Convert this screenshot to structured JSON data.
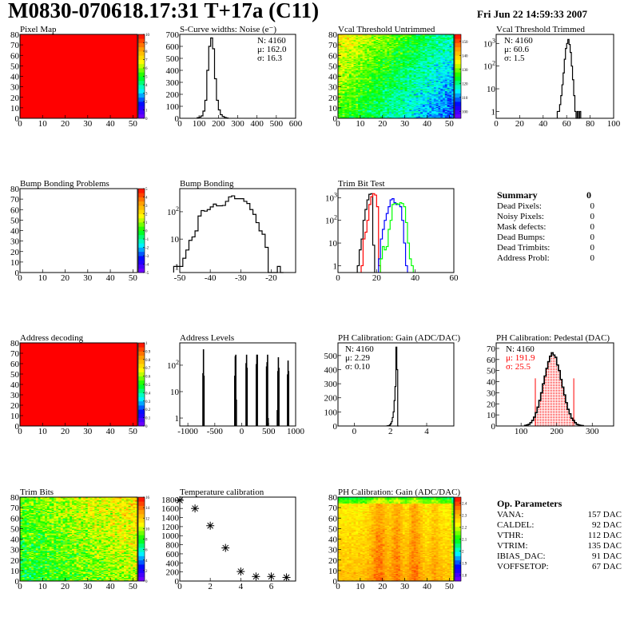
{
  "header": {
    "title": "M0830-070618.17:31 T+17a (C11)",
    "date": "Fri Jun 22 14:59:33 2007"
  },
  "summary": {
    "title": "Summary",
    "total": "0",
    "items": [
      {
        "label": "Dead Pixels:",
        "value": "0"
      },
      {
        "label": "Noisy Pixels:",
        "value": "0"
      },
      {
        "label": "Mask defects:",
        "value": "0"
      },
      {
        "label": "Dead Bumps:",
        "value": "0"
      },
      {
        "label": "Dead Trimbits:",
        "value": "0"
      },
      {
        "label": "Address Probl:",
        "value": "0"
      }
    ]
  },
  "op_parameters": {
    "title": "Op. Parameters",
    "items": [
      {
        "label": "VANA:",
        "value": "157 DAC"
      },
      {
        "label": "CALDEL:",
        "value": "92 DAC"
      },
      {
        "label": "VTHR:",
        "value": "112 DAC"
      },
      {
        "label": "VTRIM:",
        "value": "135 DAC"
      },
      {
        "label": "IBIAS_DAC:",
        "value": "91 DAC"
      },
      {
        "label": "VOFFSETOP:",
        "value": "67 DAC"
      }
    ]
  },
  "colors": {
    "palette": [
      "#7f00ff",
      "#0000ff",
      "#00ffff",
      "#00ff00",
      "#ffff00",
      "#ff9900",
      "#ff0000"
    ],
    "red": "#ff0000",
    "blue": "#0000ff",
    "green": "#00ff00",
    "black": "#000000"
  },
  "chart_data": [
    {
      "type": "heatmap",
      "title": "Pixel Map",
      "xlim": [
        0,
        52
      ],
      "ylim": [
        0,
        80
      ],
      "xticks": [
        0,
        10,
        20,
        30,
        40,
        50
      ],
      "yticks": [
        0,
        10,
        20,
        30,
        40,
        50,
        60,
        70,
        80
      ],
      "zlim": [
        0,
        10
      ],
      "zticks": [
        "0",
        "1",
        "2",
        "3",
        "4",
        "5",
        "6",
        "7",
        "8",
        "9",
        "10"
      ],
      "uniform_value": 10
    },
    {
      "type": "hist",
      "title": "S-Curve widths: Noise (e⁻)",
      "xlim": [
        0,
        600
      ],
      "ylim": [
        0,
        700
      ],
      "xticks": [
        0,
        100,
        200,
        300,
        400,
        500,
        600
      ],
      "yticks": [
        0,
        100,
        200,
        300,
        400,
        500,
        600,
        700
      ],
      "bin_start": 90,
      "bin_width": 10,
      "counts": [
        5,
        10,
        20,
        60,
        150,
        400,
        600,
        670,
        580,
        330,
        150,
        70,
        30,
        15,
        8,
        3
      ],
      "stats": [
        "N: 4160",
        "μ: 162.0",
        "σ: 16.3"
      ]
    },
    {
      "type": "heatmap",
      "title": "Vcal Threshold Untrimmed",
      "xlim": [
        0,
        52
      ],
      "ylim": [
        0,
        80
      ],
      "xticks": [
        0,
        10,
        20,
        30,
        40,
        50
      ],
      "yticks": [
        0,
        10,
        20,
        30,
        40,
        50,
        60,
        70,
        80
      ],
      "zlim": [
        95,
        155
      ],
      "zticks": [
        "100",
        "110",
        "120",
        "130",
        "140",
        "150"
      ]
    },
    {
      "type": "hist",
      "title": "Vcal Threshold Trimmed",
      "xlim": [
        0,
        100
      ],
      "ylim": [
        0.5,
        2500
      ],
      "logy": true,
      "xticks": [
        0,
        20,
        40,
        60,
        80,
        100
      ],
      "yticks": [
        1,
        10,
        100,
        1000
      ],
      "ytick_labels": [
        "1",
        "10",
        "10^2",
        "10^3"
      ],
      "bin_start": 52,
      "bin_width": 1,
      "counts": [
        1,
        1,
        2,
        5,
        15,
        50,
        200,
        600,
        1000,
        1500,
        900,
        400,
        100,
        25,
        5,
        1,
        0,
        1,
        0,
        1
      ],
      "stats": [
        "N: 4160",
        "μ: 60.6",
        "σ:  1.5"
      ]
    },
    {
      "type": "heatmap",
      "title": "Bump Bonding Problems",
      "xlim": [
        0,
        52
      ],
      "ylim": [
        0,
        80
      ],
      "xticks": [
        0,
        10,
        20,
        30,
        40,
        50
      ],
      "yticks": [
        0,
        10,
        20,
        30,
        40,
        50,
        60,
        70,
        80
      ],
      "zlim": [
        -5,
        5
      ],
      "zticks": [
        "-5",
        "-4",
        "-3",
        "-2",
        "-1",
        "0",
        "1",
        "2",
        "3",
        "4",
        "5"
      ],
      "empty": true
    },
    {
      "type": "hist",
      "title": "Bump Bonding",
      "xlim": [
        -50,
        -12
      ],
      "ylim": [
        0.6,
        700
      ],
      "logy": true,
      "xticks": [
        -50,
        -40,
        -30,
        -20
      ],
      "yticks": [
        1,
        10,
        100
      ],
      "ytick_labels": [
        "1",
        "10",
        "10^2"
      ],
      "bin_start": -52,
      "bin_width": 1,
      "counts": [
        1,
        1,
        1,
        2,
        4,
        9,
        12,
        20,
        70,
        110,
        105,
        120,
        150,
        190,
        165,
        165,
        170,
        240,
        350,
        380,
        300,
        300,
        300,
        240,
        200,
        120,
        80,
        40,
        20,
        15,
        5,
        0,
        0,
        0,
        1,
        0
      ],
      "stats": []
    },
    {
      "type": "hist",
      "title": "Trim Bit Test",
      "xlim": [
        0,
        60
      ],
      "ylim": [
        0.5,
        2500
      ],
      "logy": true,
      "xticks": [
        0,
        20,
        40,
        60
      ],
      "yticks": [
        1,
        10,
        100,
        1000
      ],
      "ytick_labels": [
        "1",
        "10",
        "10^2",
        "10^3"
      ],
      "series": [
        {
          "color": "#000000",
          "bin_start": 10,
          "bin_width": 1,
          "counts": [
            1,
            5,
            15,
            100,
            300,
            800,
            1400,
            1500,
            8
          ]
        },
        {
          "color": "#ff0000",
          "bin_start": 12,
          "bin_width": 1,
          "counts": [
            1,
            15,
            30,
            100,
            500,
            1100,
            1500,
            1300,
            400,
            1
          ]
        },
        {
          "color": "#0000ff",
          "bin_start": 21,
          "bin_width": 1,
          "counts": [
            2,
            15,
            40,
            100,
            200,
            400,
            800,
            900,
            600,
            500,
            500,
            400,
            100,
            10,
            1
          ]
        },
        {
          "color": "#00ff00",
          "bin_start": 22,
          "bin_width": 1,
          "counts": [
            2,
            7,
            5,
            7,
            40,
            100,
            500,
            550,
            550,
            500,
            600,
            550,
            400,
            80,
            10,
            2,
            1
          ]
        }
      ],
      "stats": []
    },
    {
      "type": "heatmap",
      "title": "Address decoding",
      "xlim": [
        0,
        52
      ],
      "ylim": [
        0,
        80
      ],
      "xticks": [
        0,
        10,
        20,
        30,
        40,
        50
      ],
      "yticks": [
        0,
        10,
        20,
        30,
        40,
        50,
        60,
        70,
        80
      ],
      "zlim": [
        0,
        1
      ],
      "zticks": [
        "0",
        "0.1",
        "0.2",
        "0.3",
        "0.4",
        "0.5",
        "0.6",
        "0.7",
        "0.8",
        "0.9",
        "1"
      ],
      "uniform_value": 1
    },
    {
      "type": "spikes",
      "title": "Address Levels",
      "xlim": [
        -1150,
        1000
      ],
      "ylim": [
        0.5,
        700
      ],
      "logy": true,
      "xticks": [
        -1000,
        -500,
        0,
        500,
        1000
      ],
      "yticks": [
        1,
        10,
        100
      ],
      "ytick_labels": [
        "1",
        "10",
        "10^2"
      ],
      "peaks": [
        [
          -720,
          50
        ],
        [
          -710,
          400
        ],
        [
          -700,
          40
        ],
        [
          -130,
          40
        ],
        [
          -120,
          220
        ],
        [
          -110,
          250
        ],
        [
          -100,
          5
        ],
        [
          80,
          120
        ],
        [
          90,
          250
        ],
        [
          100,
          80
        ],
        [
          270,
          110
        ],
        [
          280,
          250
        ],
        [
          290,
          250
        ],
        [
          460,
          90
        ],
        [
          470,
          130
        ],
        [
          480,
          250
        ],
        [
          490,
          1
        ],
        [
          660,
          2
        ],
        [
          670,
          60
        ],
        [
          680,
          200
        ],
        [
          690,
          80
        ],
        [
          850,
          45
        ],
        [
          860,
          150
        ],
        [
          870,
          60
        ]
      ],
      "stats": []
    },
    {
      "type": "hist",
      "title": "PH Calibration: Gain (ADC/DAC)",
      "xlim": [
        -0.9,
        5.5
      ],
      "ylim": [
        0,
        590
      ],
      "xticks": [
        0,
        2,
        4
      ],
      "yticks": [
        0,
        100,
        200,
        300,
        400,
        500
      ],
      "bin_start": 1.8,
      "bin_width": 0.05,
      "counts": [
        1,
        2,
        4,
        8,
        15,
        30,
        60,
        100,
        180,
        280,
        560,
        400,
        0
      ],
      "stats": [
        "N: 4160",
        "μ: 2.29",
        "σ: 0.10"
      ]
    },
    {
      "type": "hist",
      "title": "PH Calibration: Pedestal (DAC)",
      "xlim": [
        30,
        360
      ],
      "ylim": [
        0,
        75
      ],
      "xticks": [
        100,
        200,
        300
      ],
      "yticks": [
        0,
        10,
        20,
        30,
        40,
        50,
        60,
        70
      ],
      "bin_start": 110,
      "bin_width": 5,
      "counts": [
        0.5,
        1,
        1.5,
        3,
        5,
        8,
        12,
        17,
        23,
        30,
        38,
        45,
        52,
        58,
        63,
        66,
        64,
        62,
        55,
        50,
        42,
        35,
        28,
        21,
        15,
        11,
        7,
        5,
        3,
        1.5,
        1,
        0.5,
        0.3
      ],
      "fit_range": [
        140,
        248
      ],
      "fit_color": "#ff0000",
      "stats": [
        "N: 4160",
        "μ: 191.9",
        "σ: 25.5"
      ],
      "stats_colors": [
        "#000000",
        "#ff0000",
        "#ff0000"
      ]
    },
    {
      "type": "heatmap",
      "title": "Trim Bits",
      "xlim": [
        0,
        52
      ],
      "ylim": [
        0,
        80
      ],
      "xticks": [
        0,
        10,
        20,
        30,
        40,
        50
      ],
      "yticks": [
        0,
        10,
        20,
        30,
        40,
        50,
        60,
        70,
        80
      ],
      "zlim": [
        0,
        16
      ],
      "zticks": [
        "0",
        "2",
        "4",
        "6",
        "8",
        "10",
        "12",
        "14",
        "16"
      ]
    },
    {
      "type": "scatter",
      "title": "Temperature calibration",
      "xlim": [
        0,
        7.6
      ],
      "ylim": [
        0,
        1850
      ],
      "xticks": [
        0,
        2,
        4,
        6
      ],
      "yticks": [
        0,
        200,
        400,
        600,
        800,
        1000,
        1200,
        1400,
        1600,
        1800
      ],
      "marker": "star",
      "points": [
        [
          0,
          1780
        ],
        [
          1,
          1600
        ],
        [
          2,
          1220
        ],
        [
          3,
          730
        ],
        [
          4,
          210
        ],
        [
          5,
          100
        ],
        [
          6,
          100
        ],
        [
          7,
          80
        ]
      ]
    },
    {
      "type": "heatmap",
      "title": "PH Calibration: Gain (ADC/DAC)",
      "xlim": [
        0,
        52
      ],
      "ylim": [
        0,
        80
      ],
      "xticks": [
        0,
        10,
        20,
        30,
        40,
        50
      ],
      "yticks": [
        0,
        10,
        20,
        30,
        40,
        50,
        60,
        70,
        80
      ],
      "zlim": [
        1.75,
        2.45
      ],
      "zticks": [
        "1.8",
        "1.9",
        "2",
        "2.1",
        "2.2",
        "2.3",
        "2.4"
      ]
    }
  ]
}
